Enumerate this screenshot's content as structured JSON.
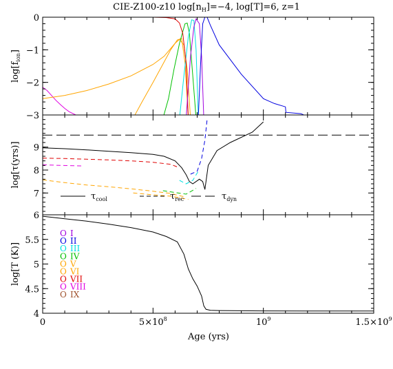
{
  "figure": {
    "title": "CIE-Z100-z10 log[n",
    "title_sub": "H",
    "title_tail": "]=−4, log[T]=6, z=1",
    "xlabel": "Age (yrs)",
    "x_ticks": [
      {
        "value": 0,
        "label": "0",
        "sup": ""
      },
      {
        "value": 500000000.0,
        "label": "5×10",
        "sup": "8"
      },
      {
        "value": 1000000000.0,
        "label": "10",
        "sup": "9"
      },
      {
        "value": 1500000000.0,
        "label": "1.5×10",
        "sup": "9"
      }
    ]
  },
  "chart_data": [
    {
      "type": "line",
      "panel": "ion-fractions",
      "ylabel_pre": "log[f",
      "ylabel_sub": "ion",
      "ylabel_post": "]",
      "xlim": [
        0,
        1500000000.0
      ],
      "ylim": [
        -3,
        0
      ],
      "y_ticks": [
        0,
        -1,
        -2,
        -3
      ],
      "series": [
        {
          "color": "#e000e0",
          "x": [
            0,
            20000000.0,
            40000000.0,
            60000000.0,
            80000000.0,
            100000000.0,
            120000000.0,
            150000000.0,
            180000000.0
          ],
          "y": [
            -2.15,
            -2.25,
            -2.4,
            -2.55,
            -2.68,
            -2.8,
            -2.9,
            -3.0,
            -3.1
          ]
        },
        {
          "color": "#ffa500",
          "x": [
            0,
            100000000.0,
            200000000.0,
            300000000.0,
            400000000.0,
            500000000.0,
            550000000.0,
            600000000.0,
            620000000.0,
            640000000.0,
            655000000.0,
            670000000.0
          ],
          "y": [
            -2.5,
            -2.4,
            -2.25,
            -2.05,
            -1.8,
            -1.45,
            -1.2,
            -0.8,
            -0.68,
            -0.85,
            -1.6,
            -3.1
          ]
        },
        {
          "color": "#ffa500",
          "x": [
            410000000.0,
            450000000.0,
            500000000.0,
            540000000.0,
            580000000.0,
            610000000.0,
            630000000.0,
            645000000.0,
            660000000.0
          ],
          "y": [
            -3.1,
            -2.6,
            -2.0,
            -1.5,
            -1.0,
            -0.7,
            -0.65,
            -1.4,
            -3.1
          ]
        },
        {
          "color": "#00c000",
          "x": [
            545000000.0,
            570000000.0,
            595000000.0,
            620000000.0,
            645000000.0,
            655000000.0,
            665000000.0,
            680000000.0,
            695000000.0
          ],
          "y": [
            -3.1,
            -2.5,
            -1.6,
            -0.8,
            -0.2,
            -0.18,
            -0.5,
            -1.8,
            -3.1
          ]
        },
        {
          "color": "#00e0e0",
          "x": [
            620000000.0,
            640000000.0,
            660000000.0,
            675000000.0,
            685000000.0,
            695000000.0,
            705000000.0
          ],
          "y": [
            -3.1,
            -1.8,
            -0.6,
            -0.08,
            -0.1,
            -1.0,
            -3.1
          ]
        },
        {
          "color": "#e00000",
          "x": [
            0,
            300000000.0,
            500000000.0,
            560000000.0,
            600000000.0,
            620000000.0,
            635000000.0,
            650000000.0,
            660000000.0
          ],
          "y": [
            0,
            0,
            0,
            -0.01,
            -0.05,
            -0.18,
            -0.5,
            -1.4,
            -3.1
          ]
        },
        {
          "color": "#a000e0",
          "x": [
            650000000.0,
            670000000.0,
            685000000.0,
            695000000.0,
            710000000.0,
            720000000.0,
            730000000.0
          ],
          "y": [
            -3.1,
            -1.2,
            -0.3,
            -0.05,
            -0.2,
            -1.2,
            -3.1
          ]
        },
        {
          "color": "#0000e0",
          "x": [
            705000000.0,
            715000000.0,
            725000000.0,
            735000000.0,
            745000000.0,
            760000000.0,
            800000000.0,
            900000000.0,
            1000000000.0,
            1050000000.0,
            1100000000.0,
            1102000000.0,
            1170000000.0,
            1200000000.0
          ],
          "y": [
            -3.1,
            -1.5,
            -0.2,
            0,
            0,
            -0.25,
            -0.85,
            -1.75,
            -2.5,
            -2.65,
            -2.75,
            -2.92,
            -2.96,
            -3.05
          ]
        }
      ]
    },
    {
      "type": "line",
      "panel": "timescales",
      "ylabel": "log[τ(yrs)]",
      "xlim": [
        0,
        1500000000.0
      ],
      "ylim": [
        6.05,
        10.4
      ],
      "y_ticks": [
        7,
        8,
        9
      ],
      "legend": [
        {
          "style": "solid",
          "label": "τ",
          "sub": "cool"
        },
        {
          "style": "dashed",
          "label": "τ",
          "sub": "rec"
        },
        {
          "style": "longdash",
          "label": "τ",
          "sub": "dyn"
        }
      ],
      "series": [
        {
          "label": "τdyn",
          "color": "#000000",
          "style": "longdash",
          "x": [
            0,
            1500000000.0
          ],
          "y": [
            9.52,
            9.52
          ]
        },
        {
          "label": "τcool",
          "color": "#000000",
          "style": "solid",
          "x": [
            0,
            100000000.0,
            200000000.0,
            300000000.0,
            400000000.0,
            500000000.0,
            550000000.0,
            600000000.0,
            630000000.0,
            650000000.0,
            665000000.0,
            680000000.0,
            695000000.0,
            710000000.0,
            725000000.0,
            735000000.0,
            750000000.0,
            790000000.0,
            850000000.0,
            950000000.0,
            1000000000.0
          ],
          "y": [
            8.97,
            8.93,
            8.88,
            8.82,
            8.76,
            8.68,
            8.6,
            8.4,
            8.1,
            7.8,
            7.5,
            7.4,
            7.5,
            7.6,
            7.5,
            7.15,
            8.2,
            8.85,
            9.2,
            9.65,
            10.1
          ]
        },
        {
          "label": "τrec",
          "color": "#e00000",
          "style": "dashed",
          "x": [
            0,
            100000000.0,
            200000000.0,
            300000000.0,
            400000000.0,
            500000000.0,
            580000000.0,
            620000000.0
          ],
          "y": [
            8.52,
            8.5,
            8.47,
            8.44,
            8.4,
            8.34,
            8.25,
            8.1
          ]
        },
        {
          "label": "τrec",
          "color": "#e000e0",
          "style": "dashed",
          "x": [
            0,
            80000000.0,
            180000000.0
          ],
          "y": [
            8.23,
            8.2,
            8.18
          ]
        },
        {
          "label": "τrec",
          "color": "#ffa500",
          "style": "dashed",
          "x": [
            0,
            100000000.0,
            200000000.0,
            300000000.0,
            400000000.0,
            500000000.0,
            580000000.0,
            620000000.0,
            650000000.0
          ],
          "y": [
            7.57,
            7.45,
            7.35,
            7.27,
            7.18,
            7.08,
            6.98,
            6.88,
            6.82
          ]
        },
        {
          "label": "τrec",
          "color": "#ffa500",
          "style": "dashed",
          "x": [
            410000000.0,
            500000000.0,
            580000000.0,
            630000000.0,
            660000000.0
          ],
          "y": [
            7.0,
            6.92,
            6.86,
            6.78,
            6.72
          ]
        },
        {
          "label": "τrec",
          "color": "#00c000",
          "style": "dashed",
          "x": [
            545000000.0,
            600000000.0,
            650000000.0,
            695000000.0
          ],
          "y": [
            7.1,
            7.02,
            6.95,
            7.2
          ]
        },
        {
          "label": "τrec",
          "color": "#00e0e0",
          "style": "dashed",
          "x": [
            620000000.0,
            650000000.0,
            680000000.0,
            705000000.0
          ],
          "y": [
            7.55,
            7.4,
            7.55,
            7.95
          ]
        },
        {
          "label": "τrec",
          "color": "#0000e0",
          "style": "dashed",
          "x": [
            670000000.0,
            700000000.0,
            720000000.0,
            735000000.0,
            745000000.0
          ],
          "y": [
            7.82,
            7.95,
            8.5,
            9.3,
            10.2
          ]
        }
      ]
    },
    {
      "type": "line",
      "panel": "temperature",
      "ylabel": "log[T (K)]",
      "xlim": [
        0,
        1500000000.0
      ],
      "ylim": [
        4,
        6
      ],
      "y_ticks": [
        4,
        4.5,
        5,
        5.5,
        6
      ],
      "series": [
        {
          "color": "#000000",
          "style": "solid",
          "x": [
            0,
            100000000.0,
            200000000.0,
            300000000.0,
            400000000.0,
            500000000.0,
            560000000.0,
            610000000.0,
            640000000.0,
            660000000.0,
            680000000.0,
            700000000.0,
            720000000.0,
            730000000.0,
            740000000.0,
            760000000.0,
            800000000.0,
            900000000.0,
            1000000000.0,
            1200000000.0,
            1500000000.0
          ],
          "y": [
            5.97,
            5.92,
            5.87,
            5.81,
            5.74,
            5.65,
            5.56,
            5.45,
            5.2,
            4.9,
            4.7,
            4.55,
            4.35,
            4.15,
            4.08,
            4.06,
            4.055,
            4.05,
            4.048,
            4.045,
            4.045
          ]
        }
      ]
    }
  ],
  "ions_legend": [
    {
      "element": "O",
      "numeral": "I",
      "color": "#a000e0"
    },
    {
      "element": "O",
      "numeral": "II",
      "color": "#0000e0"
    },
    {
      "element": "O",
      "numeral": "III",
      "color": "#00e0e0"
    },
    {
      "element": "O",
      "numeral": "IV",
      "color": "#00c000"
    },
    {
      "element": "O",
      "numeral": "V",
      "color": "#ffa500"
    },
    {
      "element": "O",
      "numeral": "VI",
      "color": "#ffa500"
    },
    {
      "element": "O",
      "numeral": "VII",
      "color": "#e00000"
    },
    {
      "element": "O",
      "numeral": "VIII",
      "color": "#e000e0"
    },
    {
      "element": "O",
      "numeral": "IX",
      "color": "#a0522d"
    }
  ]
}
